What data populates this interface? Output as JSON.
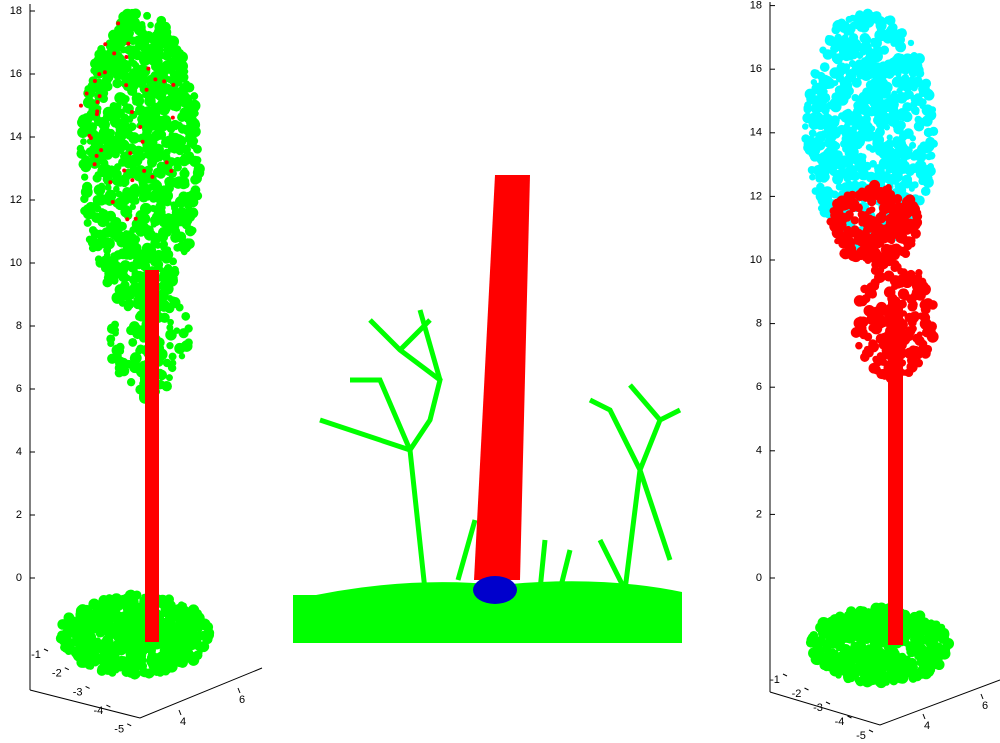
{
  "panels": [
    {
      "z_ticks": [
        0,
        2,
        4,
        6,
        8,
        10,
        12,
        14,
        16,
        18
      ],
      "x_ticks": [
        -1,
        -2,
        -3,
        -4,
        -5
      ],
      "y_ticks": [
        4,
        6
      ]
    },
    {
      "z_ticks": [
        0,
        2,
        4,
        6,
        8,
        10,
        12,
        14,
        16,
        18
      ],
      "x_ticks": [
        -1,
        -2,
        -3,
        -4,
        -5
      ],
      "y_ticks": [
        4,
        6
      ]
    }
  ]
}
